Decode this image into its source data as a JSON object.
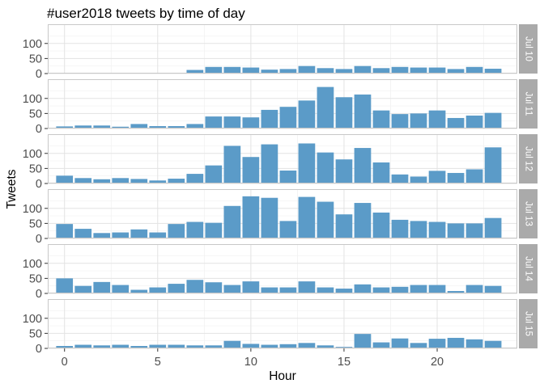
{
  "chart_data": {
    "type": "bar",
    "title": "#user2018 tweets by time of day",
    "xlabel": "Hour",
    "ylabel": "Tweets",
    "x_ticks": [
      0,
      5,
      10,
      15,
      20
    ],
    "y_ticks": [
      0,
      50,
      100
    ],
    "ylim": [
      0,
      145
    ],
    "xlim": [
      -0.9,
      24.3
    ],
    "grid": true,
    "bar_color": "#5b9bc8",
    "panel_border": "#c8c8c8",
    "strip_color": "#aaaaaa",
    "hours": [
      0,
      1,
      2,
      3,
      4,
      5,
      6,
      7,
      8,
      9,
      10,
      11,
      12,
      13,
      14,
      15,
      16,
      17,
      18,
      19,
      20,
      21,
      22,
      23
    ],
    "panels": [
      {
        "label": "Jul 10",
        "values": [
          1,
          1,
          1,
          0,
          0,
          0,
          1,
          12,
          22,
          22,
          20,
          13,
          15,
          25,
          18,
          15,
          25,
          18,
          22,
          20,
          20,
          15,
          22,
          16
        ]
      },
      {
        "label": "Jul 11",
        "values": [
          7,
          10,
          10,
          6,
          15,
          8,
          8,
          15,
          40,
          40,
          37,
          62,
          72,
          93,
          138,
          104,
          113,
          60,
          48,
          50,
          60,
          35,
          43,
          52
        ]
      },
      {
        "label": "Jul 12",
        "values": [
          26,
          18,
          14,
          18,
          15,
          10,
          16,
          32,
          60,
          125,
          88,
          130,
          43,
          133,
          103,
          80,
          118,
          70,
          30,
          23,
          42,
          35,
          47,
          120
        ]
      },
      {
        "label": "Jul 13",
        "values": [
          48,
          32,
          18,
          20,
          30,
          20,
          48,
          55,
          52,
          108,
          140,
          135,
          58,
          138,
          122,
          80,
          118,
          86,
          62,
          58,
          55,
          50,
          50,
          68
        ]
      },
      {
        "label": "Jul 14",
        "values": [
          50,
          25,
          38,
          28,
          12,
          20,
          32,
          45,
          37,
          28,
          40,
          20,
          20,
          40,
          20,
          16,
          30,
          20,
          22,
          28,
          28,
          8,
          28,
          25
        ]
      },
      {
        "label": "Jul 15",
        "values": [
          8,
          12,
          10,
          12,
          8,
          12,
          12,
          10,
          10,
          25,
          15,
          12,
          14,
          18,
          10,
          5,
          48,
          20,
          33,
          18,
          32,
          35,
          30,
          25
        ]
      }
    ]
  }
}
